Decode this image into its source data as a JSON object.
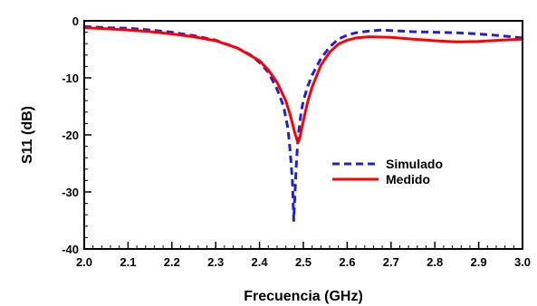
{
  "chart_data": {
    "type": "line",
    "title": "",
    "xlabel": "Frecuencia (GHz)",
    "ylabel": "S11 (dB)",
    "xlim": [
      2.0,
      3.0
    ],
    "ylim": [
      -40,
      0
    ],
    "xticks": [
      "2.0",
      "2.1",
      "2.2",
      "2.3",
      "2.4",
      "2.5",
      "2.6",
      "2.7",
      "2.8",
      "2.9",
      "3.0"
    ],
    "yticks": [
      "0",
      "-10",
      "-20",
      "-30",
      "-40"
    ],
    "grid": false,
    "legend_position": "center-right",
    "series": [
      {
        "name": "Simulado",
        "color": "#1f1fd6",
        "dash": "dashed",
        "x": [
          2.0,
          2.05,
          2.1,
          2.15,
          2.2,
          2.25,
          2.3,
          2.35,
          2.38,
          2.4,
          2.42,
          2.44,
          2.455,
          2.465,
          2.47,
          2.475,
          2.478,
          2.481,
          2.484,
          2.487,
          2.49,
          2.495,
          2.5,
          2.51,
          2.52,
          2.54,
          2.56,
          2.58,
          2.6,
          2.62,
          2.65,
          2.68,
          2.7,
          2.75,
          2.8,
          2.85,
          2.9,
          2.95,
          3.0
        ],
        "y": [
          -1.0,
          -1.2,
          -1.3,
          -1.6,
          -2.0,
          -2.6,
          -3.4,
          -4.8,
          -6.0,
          -7.3,
          -9.0,
          -12.0,
          -15.0,
          -19.0,
          -23.0,
          -28.0,
          -35.0,
          -30.0,
          -25.0,
          -21.5,
          -19.0,
          -16.0,
          -14.0,
          -11.5,
          -9.5,
          -6.6,
          -4.6,
          -3.2,
          -2.5,
          -2.1,
          -1.8,
          -1.6,
          -1.7,
          -1.9,
          -2.0,
          -2.1,
          -2.3,
          -2.6,
          -3.0
        ]
      },
      {
        "name": "Medido",
        "color": "#ff0000",
        "dash": "solid",
        "x": [
          2.0,
          2.05,
          2.1,
          2.15,
          2.2,
          2.25,
          2.3,
          2.35,
          2.4,
          2.42,
          2.44,
          2.46,
          2.47,
          2.48,
          2.485,
          2.488,
          2.492,
          2.5,
          2.51,
          2.52,
          2.54,
          2.56,
          2.58,
          2.6,
          2.62,
          2.65,
          2.7,
          2.75,
          2.8,
          2.85,
          2.9,
          2.95,
          3.0
        ],
        "y": [
          -1.2,
          -1.4,
          -1.6,
          -1.9,
          -2.3,
          -2.8,
          -3.5,
          -4.8,
          -7.0,
          -8.6,
          -10.8,
          -14.0,
          -16.5,
          -19.5,
          -20.8,
          -21.3,
          -20.5,
          -17.5,
          -14.2,
          -11.6,
          -7.8,
          -5.5,
          -4.1,
          -3.4,
          -3.0,
          -2.8,
          -2.9,
          -3.2,
          -3.5,
          -3.7,
          -3.6,
          -3.4,
          -3.2
        ]
      }
    ]
  }
}
